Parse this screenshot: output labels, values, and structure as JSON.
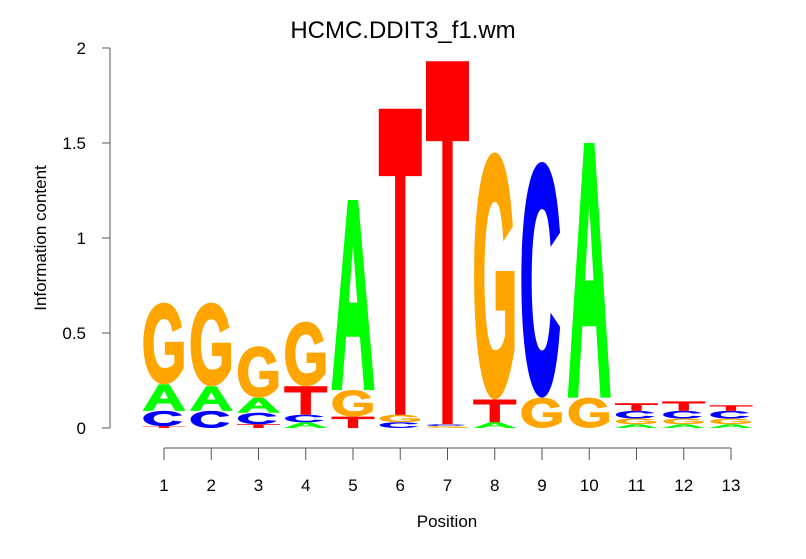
{
  "chart_data": {
    "type": "sequence-logo",
    "title": "HCMC.DDIT3_f1.wm",
    "xlabel": "Position",
    "ylabel": "Information content",
    "ylim": [
      0,
      2
    ],
    "yticks": [
      0,
      0.5,
      1,
      1.5,
      2
    ],
    "ytick_labels": [
      "0",
      "0.5",
      "1",
      "1.5",
      "2"
    ],
    "xticks": [
      1,
      2,
      3,
      4,
      5,
      6,
      7,
      8,
      9,
      10,
      11,
      12,
      13
    ],
    "xtick_labels": [
      "1",
      "2",
      "3",
      "4",
      "5",
      "6",
      "7",
      "8",
      "9",
      "10",
      "11",
      "12",
      "13"
    ],
    "grid": false,
    "colors": {
      "A": "#00ff00",
      "C": "#0000ff",
      "G": "#ffa500",
      "T": "#ff0000"
    },
    "positions": [
      {
        "pos": 1,
        "stack": [
          {
            "base": "T",
            "h": 0.01
          },
          {
            "base": "C",
            "h": 0.08
          },
          {
            "base": "A",
            "h": 0.14
          },
          {
            "base": "G",
            "h": 0.43
          }
        ]
      },
      {
        "pos": 2,
        "stack": [
          {
            "base": "C",
            "h": 0.09
          },
          {
            "base": "A",
            "h": 0.13
          },
          {
            "base": "G",
            "h": 0.44
          }
        ]
      },
      {
        "pos": 3,
        "stack": [
          {
            "base": "T",
            "h": 0.02
          },
          {
            "base": "C",
            "h": 0.06
          },
          {
            "base": "A",
            "h": 0.08
          },
          {
            "base": "G",
            "h": 0.27
          }
        ]
      },
      {
        "pos": 4,
        "stack": [
          {
            "base": "A",
            "h": 0.03
          },
          {
            "base": "C",
            "h": 0.04
          },
          {
            "base": "T",
            "h": 0.15
          },
          {
            "base": "G",
            "h": 0.34
          }
        ]
      },
      {
        "pos": 5,
        "stack": [
          {
            "base": "T",
            "h": 0.06
          },
          {
            "base": "G",
            "h": 0.14
          },
          {
            "base": "A",
            "h": 1.0
          }
        ]
      },
      {
        "pos": 6,
        "stack": [
          {
            "base": "C",
            "h": 0.03
          },
          {
            "base": "G",
            "h": 0.04
          },
          {
            "base": "T",
            "h": 1.61
          }
        ]
      },
      {
        "pos": 7,
        "stack": [
          {
            "base": "G",
            "h": 0.01
          },
          {
            "base": "C",
            "h": 0.01
          },
          {
            "base": "T",
            "h": 1.91
          }
        ]
      },
      {
        "pos": 8,
        "stack": [
          {
            "base": "A",
            "h": 0.03
          },
          {
            "base": "T",
            "h": 0.12
          },
          {
            "base": "G",
            "h": 1.3
          }
        ]
      },
      {
        "pos": 9,
        "stack": [
          {
            "base": "G",
            "h": 0.16
          },
          {
            "base": "C",
            "h": 1.24
          }
        ]
      },
      {
        "pos": 10,
        "stack": [
          {
            "base": "G",
            "h": 0.16
          },
          {
            "base": "A",
            "h": 1.34
          }
        ]
      },
      {
        "pos": 11,
        "stack": [
          {
            "base": "A",
            "h": 0.02
          },
          {
            "base": "G",
            "h": 0.03
          },
          {
            "base": "C",
            "h": 0.04
          },
          {
            "base": "T",
            "h": 0.04
          }
        ]
      },
      {
        "pos": 12,
        "stack": [
          {
            "base": "A",
            "h": 0.02
          },
          {
            "base": "G",
            "h": 0.03
          },
          {
            "base": "C",
            "h": 0.04
          },
          {
            "base": "T",
            "h": 0.05
          }
        ]
      },
      {
        "pos": 13,
        "stack": [
          {
            "base": "A",
            "h": 0.02
          },
          {
            "base": "G",
            "h": 0.03
          },
          {
            "base": "C",
            "h": 0.04
          },
          {
            "base": "T",
            "h": 0.03
          }
        ]
      }
    ]
  }
}
